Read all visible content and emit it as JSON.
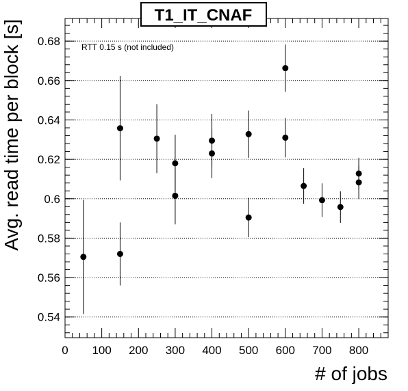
{
  "chart_data": {
    "type": "scatter",
    "title": "T1_IT_CNAF",
    "xlabel": "# of jobs",
    "ylabel": "Avg. read time per block [s]",
    "annotation": "RTT 0.15 s (not included)",
    "xlim": [
      0,
      880
    ],
    "ylim": [
      0.5295,
      0.6915
    ],
    "x_ticks": [
      0,
      100,
      200,
      300,
      400,
      500,
      600,
      700,
      800
    ],
    "y_ticks": [
      0.54,
      0.56,
      0.58,
      0.6,
      0.62,
      0.64,
      0.66,
      0.68
    ],
    "x_tick_labels": [
      "0",
      "100",
      "200",
      "300",
      "400",
      "500",
      "600",
      "700",
      "800"
    ],
    "y_tick_labels": [
      "0.54",
      "0.56",
      "0.58",
      "0.6",
      "0.62",
      "0.64",
      "0.66",
      "0.68"
    ],
    "grid": "horizontal dotted",
    "points": [
      {
        "x": 50,
        "y": 0.5705,
        "err": 0.029
      },
      {
        "x": 150,
        "y": 0.572,
        "err": 0.016
      },
      {
        "x": 150,
        "y": 0.6358,
        "err": 0.0265
      },
      {
        "x": 250,
        "y": 0.6305,
        "err": 0.0175
      },
      {
        "x": 300,
        "y": 0.618,
        "err": 0.0145
      },
      {
        "x": 300,
        "y": 0.6015,
        "err": 0.0145
      },
      {
        "x": 400,
        "y": 0.6295,
        "err": 0.0135
      },
      {
        "x": 400,
        "y": 0.623,
        "err": 0.0125
      },
      {
        "x": 500,
        "y": 0.6328,
        "err": 0.012
      },
      {
        "x": 500,
        "y": 0.5905,
        "err": 0.01
      },
      {
        "x": 600,
        "y": 0.6663,
        "err": 0.012
      },
      {
        "x": 600,
        "y": 0.631,
        "err": 0.01
      },
      {
        "x": 650,
        "y": 0.6065,
        "err": 0.009
      },
      {
        "x": 700,
        "y": 0.5993,
        "err": 0.0085
      },
      {
        "x": 750,
        "y": 0.5958,
        "err": 0.008
      },
      {
        "x": 800,
        "y": 0.6128,
        "err": 0.008
      },
      {
        "x": 800,
        "y": 0.6083,
        "err": 0.0085
      }
    ]
  }
}
